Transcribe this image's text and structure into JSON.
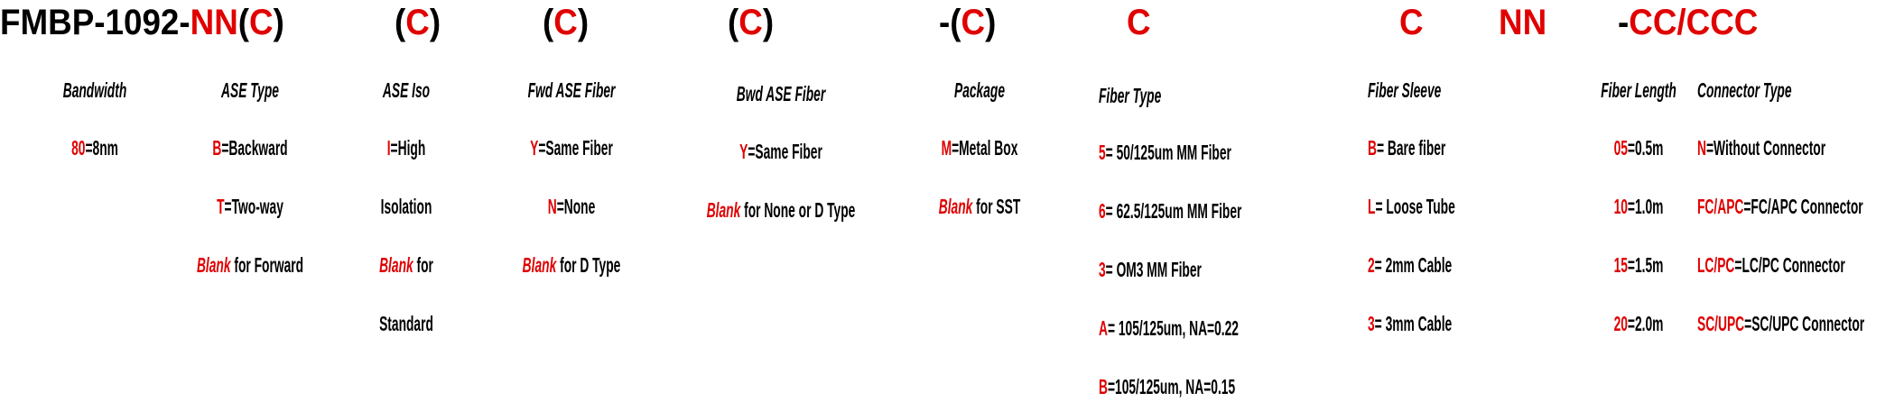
{
  "colors": {
    "accent": "#e00000",
    "text": "#000000"
  },
  "header": [
    {
      "text": "FMBP-1092-",
      "red": false
    },
    {
      "text": "NN",
      "red": true
    },
    {
      "text": "(",
      "red": false
    },
    {
      "text": "C",
      "red": true
    },
    {
      "text": ")",
      "red": false
    },
    {
      "text": "(",
      "red": false
    },
    {
      "text": "C",
      "red": true
    },
    {
      "text": ")",
      "red": false
    },
    {
      "text": "(",
      "red": false
    },
    {
      "text": "C",
      "red": true
    },
    {
      "text": ")",
      "red": false
    },
    {
      "text": "(",
      "red": false
    },
    {
      "text": "C",
      "red": true
    },
    {
      "text": ")",
      "red": false
    },
    {
      "text": "-(",
      "red": false
    },
    {
      "text": "C",
      "red": true
    },
    {
      "text": ")",
      "red": false
    },
    {
      "text": "C",
      "red": true
    },
    {
      "text": "C",
      "red": true
    },
    {
      "text": "NN",
      "red": true
    },
    {
      "text": "-",
      "red": false
    },
    {
      "text": "CC/CCC",
      "red": true
    }
  ],
  "columns": [
    {
      "label": "Bandwidth",
      "items": [
        {
          "code": "80",
          "text": "=8nm"
        }
      ]
    },
    {
      "label": "ASE Type",
      "items": [
        {
          "code": "B",
          "text": "=Backward"
        },
        {
          "code": "T",
          "text": "=Two-way"
        },
        {
          "code": "Blank",
          "text": " for Forward"
        }
      ]
    },
    {
      "label": "ASE Iso",
      "items": [
        {
          "code": "I",
          "text": "=High"
        },
        {
          "code": "",
          "text": "Isolation"
        },
        {
          "code": "Blank",
          "text": " for"
        },
        {
          "code": "",
          "text": "Standard"
        }
      ]
    },
    {
      "label": "Fwd ASE Fiber",
      "items": [
        {
          "code": "Y",
          "text": "=Same Fiber"
        },
        {
          "code": "N",
          "text": "=None"
        },
        {
          "code": "Blank",
          "text": " for D Type"
        }
      ]
    },
    {
      "label": "Bwd ASE Fiber",
      "items": [
        {
          "code": "Y",
          "text": "=Same Fiber"
        },
        {
          "code": "Blank",
          "text": " for None or D Type"
        }
      ]
    },
    {
      "label": "Package",
      "items": [
        {
          "code": "M",
          "text": "=Metal Box"
        },
        {
          "code": "Blank",
          "text": " for SST"
        }
      ]
    },
    {
      "label": "Fiber Type",
      "items": [
        {
          "code": "5",
          "text": "= 50/125um MM Fiber"
        },
        {
          "code": "6",
          "text": "= 62.5/125um MM Fiber"
        },
        {
          "code": "3",
          "text": "= OM3 MM Fiber"
        },
        {
          "code": "A",
          "text": "= 105/125um, NA=0.22"
        },
        {
          "code": "B",
          "text": "=105/125um, NA=0.15"
        }
      ]
    },
    {
      "label": "Fiber Sleeve",
      "items": [
        {
          "code": "B",
          "text": "= Bare fiber"
        },
        {
          "code": "L",
          "text": "= Loose Tube"
        },
        {
          "code": "2",
          "text": "= 2mm Cable"
        },
        {
          "code": "3",
          "text": "= 3mm Cable"
        }
      ]
    },
    {
      "label": "Fiber Length",
      "items": [
        {
          "code": "05",
          "text": "=0.5m"
        },
        {
          "code": "10",
          "text": "=1.0m"
        },
        {
          "code": "15",
          "text": "=1.5m"
        },
        {
          "code": "20",
          "text": "=2.0m"
        }
      ]
    },
    {
      "label": "Connector Type",
      "items": [
        {
          "code": "N",
          "text": "=Without Connector"
        },
        {
          "code": "FC/APC",
          "text": "=FC/APC Connector"
        },
        {
          "code": "LC/PC",
          "text": "=LC/PC Connector"
        },
        {
          "code": "SC/UPC",
          "text": "=SC/UPC Connector"
        }
      ]
    }
  ]
}
